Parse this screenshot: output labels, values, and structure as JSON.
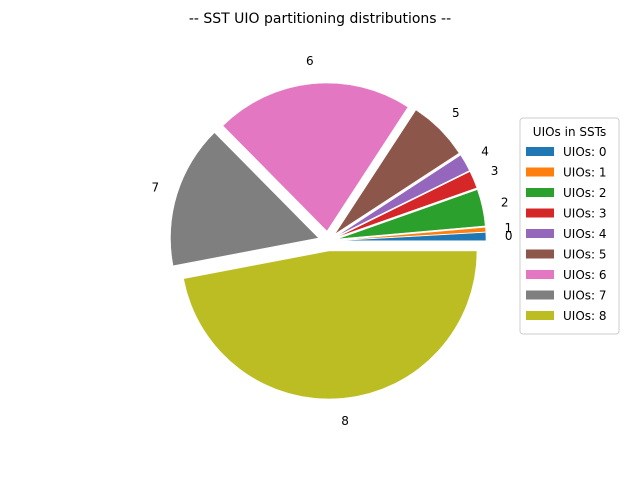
{
  "chart_data": {
    "type": "pie",
    "title": "-- SST UIO partitioning distributions --",
    "categories": [
      "0",
      "1",
      "2",
      "3",
      "4",
      "5",
      "6",
      "7",
      "8"
    ],
    "values": [
      0.9,
      0.5,
      4.0,
      1.9,
      1.9,
      6.6,
      21.6,
      15.6,
      47.0
    ],
    "colors": [
      "#1f77b4",
      "#ff7f0e",
      "#2ca02c",
      "#d62728",
      "#9467bd",
      "#8c564b",
      "#e377c2",
      "#7f7f7f",
      "#bcbd22"
    ],
    "legend": {
      "title": "UIOs in SSTs",
      "placement": "right",
      "entries": [
        "UIOs: 0",
        "UIOs: 1",
        "UIOs: 2",
        "UIOs: 3",
        "UIOs: 4",
        "UIOs: 5",
        "UIOs: 6",
        "UIOs: 7",
        "UIOs: 8"
      ]
    },
    "exploded": true
  }
}
